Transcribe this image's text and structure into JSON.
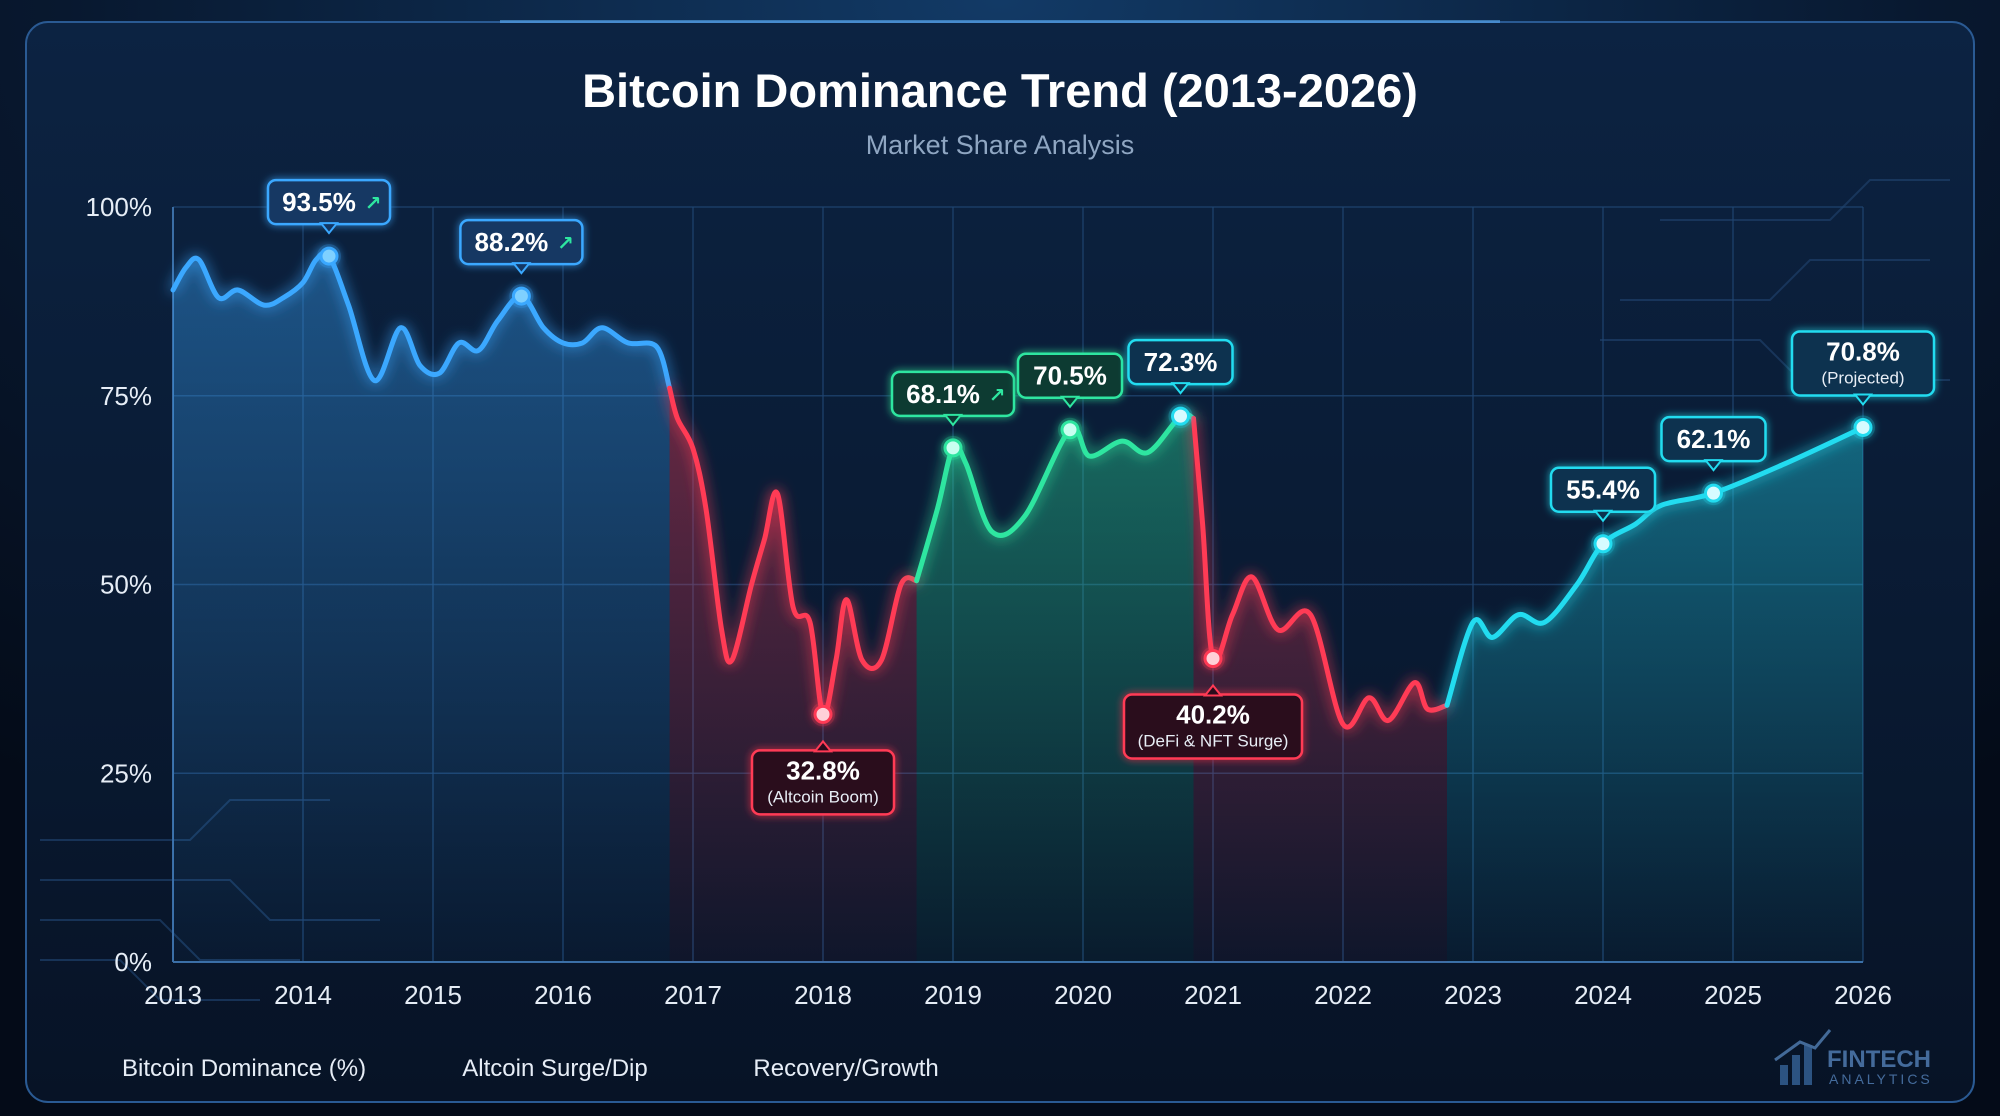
{
  "chart_data": {
    "type": "line",
    "title": "Bitcoin Dominance Trend (2013-2026)",
    "subtitle": "Market Share Analysis",
    "xlabel": "",
    "ylabel": "",
    "xlim": [
      2013,
      2026
    ],
    "ylim": [
      0,
      100
    ],
    "x_ticks": [
      "2013",
      "2014",
      "2015",
      "2016",
      "2017",
      "2018",
      "2019",
      "2020",
      "2021",
      "2022",
      "2023",
      "2024",
      "2025",
      "2026"
    ],
    "y_ticks": [
      "0%",
      "25%",
      "50%",
      "75%",
      "100%"
    ],
    "grid": true,
    "legend_position": "bottom-left",
    "series": [
      {
        "name": "Bitcoin Dominance (%)",
        "color": "#3aa8ff",
        "legend": true,
        "points": [
          [
            2013.0,
            89
          ],
          [
            2013.1,
            92
          ],
          [
            2013.2,
            93
          ],
          [
            2013.35,
            88
          ],
          [
            2013.5,
            89
          ],
          [
            2013.7,
            87
          ],
          [
            2013.85,
            88
          ],
          [
            2014.0,
            90
          ],
          [
            2014.1,
            93
          ],
          [
            2014.2,
            93.5
          ],
          [
            2014.35,
            87
          ],
          [
            2014.55,
            77
          ],
          [
            2014.75,
            84
          ],
          [
            2014.9,
            79
          ],
          [
            2015.05,
            78
          ],
          [
            2015.2,
            82
          ],
          [
            2015.35,
            81
          ],
          [
            2015.5,
            85
          ],
          [
            2015.68,
            88.2
          ],
          [
            2015.85,
            84
          ],
          [
            2016.0,
            82
          ],
          [
            2016.15,
            82
          ],
          [
            2016.3,
            84
          ],
          [
            2016.5,
            82
          ],
          [
            2016.72,
            81.5
          ],
          [
            2016.82,
            76
          ]
        ]
      },
      {
        "name": "Altcoin Surge/Dip",
        "color": "#ff3a55",
        "legend": true,
        "points": [
          [
            2016.82,
            76
          ],
          [
            2016.88,
            72
          ],
          [
            2017.0,
            68
          ],
          [
            2017.1,
            60
          ],
          [
            2017.22,
            44
          ],
          [
            2017.3,
            40
          ],
          [
            2017.45,
            50
          ],
          [
            2017.55,
            56
          ],
          [
            2017.65,
            62
          ],
          [
            2017.77,
            47
          ],
          [
            2017.9,
            45
          ],
          [
            2018.0,
            32.8
          ],
          [
            2018.1,
            40
          ],
          [
            2018.18,
            48
          ],
          [
            2018.3,
            40
          ],
          [
            2018.45,
            40
          ],
          [
            2018.6,
            50
          ],
          [
            2018.72,
            50.5
          ]
        ]
      },
      {
        "name": "Recovery/Growth",
        "color": "#2ee6a0",
        "legend": true,
        "points": [
          [
            2018.72,
            50.5
          ],
          [
            2018.88,
            60
          ],
          [
            2019.0,
            68.1
          ],
          [
            2019.1,
            66
          ],
          [
            2019.3,
            57
          ],
          [
            2019.55,
            59
          ],
          [
            2019.9,
            70.5
          ],
          [
            2020.05,
            67
          ],
          [
            2020.3,
            69
          ],
          [
            2020.5,
            67.5
          ],
          [
            2020.75,
            72.3
          ],
          [
            2020.85,
            72
          ]
        ]
      },
      {
        "name": "Altcoin Surge/Dip",
        "color": "#ff3a55",
        "legend": false,
        "points": [
          [
            2020.85,
            72
          ],
          [
            2020.92,
            58
          ],
          [
            2021.0,
            40.2
          ],
          [
            2021.15,
            46
          ],
          [
            2021.3,
            51
          ],
          [
            2021.5,
            44
          ],
          [
            2021.75,
            46
          ],
          [
            2022.0,
            31.5
          ],
          [
            2022.2,
            35
          ],
          [
            2022.35,
            32
          ],
          [
            2022.55,
            37
          ],
          [
            2022.65,
            33.5
          ],
          [
            2022.8,
            34
          ]
        ]
      },
      {
        "name": "Bitcoin Dominance (%)",
        "color": "#22dcf0",
        "legend": false,
        "points": [
          [
            2022.8,
            34
          ],
          [
            2023.0,
            45
          ],
          [
            2023.15,
            43
          ],
          [
            2023.35,
            46
          ],
          [
            2023.55,
            45
          ],
          [
            2023.8,
            50
          ],
          [
            2024.0,
            55.4
          ],
          [
            2024.25,
            58
          ],
          [
            2024.45,
            60.5
          ],
          [
            2024.85,
            62.1
          ],
          [
            2025.4,
            66
          ],
          [
            2026.0,
            70.8
          ]
        ]
      }
    ],
    "annotations": [
      {
        "label": "93.5%",
        "x": 2014.2,
        "y": 93.5,
        "kind": "up",
        "arrow": "↗"
      },
      {
        "label": "88.2%",
        "x": 2015.68,
        "y": 88.2,
        "kind": "up",
        "arrow": "↗"
      },
      {
        "label": "32.8%",
        "sublabel": "(Altcoin Boom)",
        "x": 2018.0,
        "y": 32.8,
        "kind": "down"
      },
      {
        "label": "68.1%",
        "x": 2019.0,
        "y": 68.1,
        "kind": "green",
        "arrow": "↗"
      },
      {
        "label": "70.5%",
        "x": 2019.9,
        "y": 70.5,
        "kind": "green"
      },
      {
        "label": "72.3%",
        "x": 2020.75,
        "y": 72.3,
        "kind": "cyan"
      },
      {
        "label": "40.2%",
        "sublabel": "(DeFi & NFT Surge)",
        "x": 2021.0,
        "y": 40.2,
        "kind": "down"
      },
      {
        "label": "55.4%",
        "x": 2024.0,
        "y": 55.4,
        "kind": "cyan"
      },
      {
        "label": "62.1%",
        "x": 2024.85,
        "y": 62.1,
        "kind": "cyan"
      },
      {
        "label": "70.8%",
        "sublabel": "(Projected)",
        "x": 2026.0,
        "y": 70.8,
        "kind": "cyan"
      }
    ]
  },
  "legend": [
    {
      "label": "Bitcoin Dominance (%)",
      "color": "#3aa8ff"
    },
    {
      "label": "Altcoin Surge/Dip",
      "color": "#ff3a55"
    },
    {
      "label": "Recovery/Growth",
      "color": "#2ee6a0"
    }
  ],
  "brand": {
    "name": "FINTECH",
    "tagline": "ANALYTICS"
  }
}
